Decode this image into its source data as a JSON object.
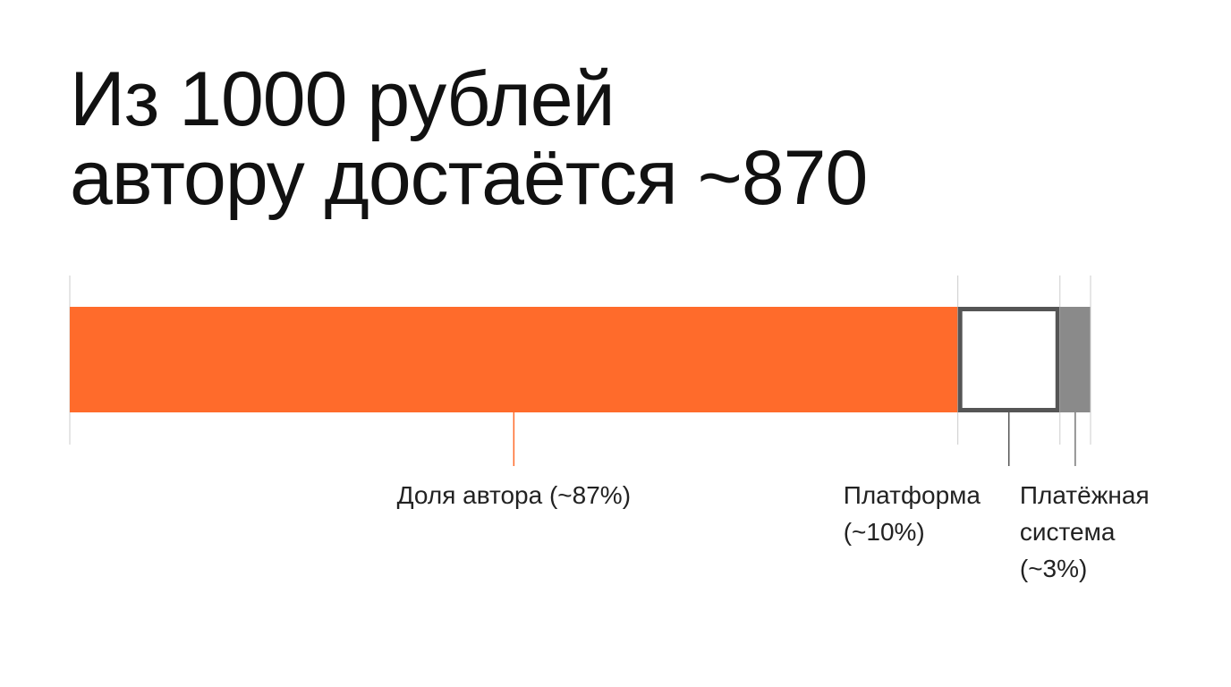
{
  "chart_data": {
    "type": "stacked-bar",
    "title": [
      "Из 1000 рублей",
      "автору достаётся ~870"
    ],
    "xlim": [
      0,
      100
    ],
    "series": [
      {
        "name": "Доля автора",
        "color": "#ff6b2b",
        "values": [
          87
        ],
        "value_labels": [
          "(~87%)"
        ]
      },
      {
        "name": "Платформа",
        "color": "#ffffff",
        "stroke": "#555555",
        "values": [
          10
        ],
        "value_labels": [
          "(~10%)"
        ]
      },
      {
        "name": "Платёжная система",
        "color": "#8a8a8a",
        "values": [
          3
        ],
        "value_labels": [
          "(~3%)"
        ]
      }
    ]
  }
}
